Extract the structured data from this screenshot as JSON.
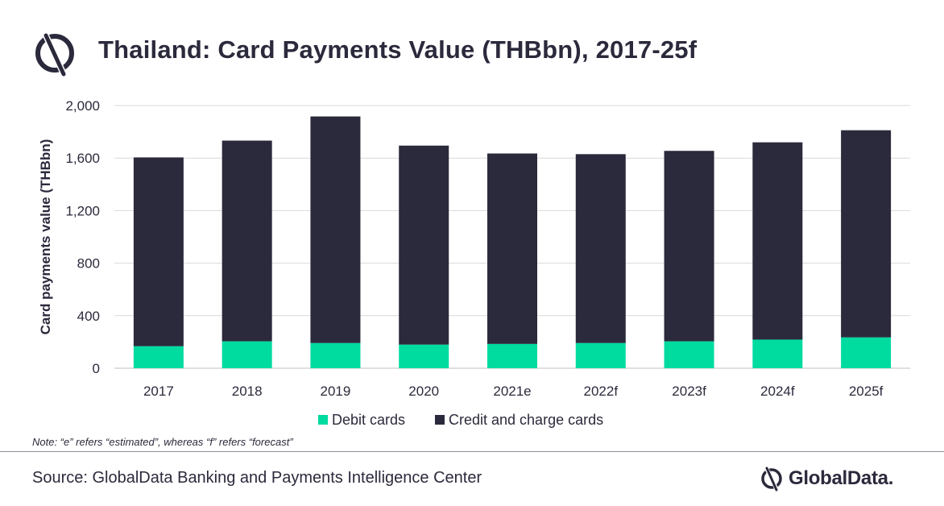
{
  "header": {
    "title": "Thailand: Card Payments Value (THBbn), 2017-25f",
    "logo_icon": "globaldata-icon"
  },
  "colors": {
    "debit": "#00dba0",
    "credit": "#2b2a3c",
    "grid": "#d9d9d9",
    "text": "#2b2a3c"
  },
  "chart_data": {
    "type": "bar",
    "stacked": true,
    "categories": [
      "2017",
      "2018",
      "2019",
      "2020",
      "2021e",
      "2022f",
      "2023f",
      "2024f",
      "2025f"
    ],
    "series": [
      {
        "name": "Debit cards",
        "values": [
          168,
          205,
          192,
          180,
          185,
          192,
          205,
          218,
          235
        ]
      },
      {
        "name": "Credit and charge cards",
        "values": [
          1437,
          1528,
          1725,
          1515,
          1450,
          1438,
          1450,
          1502,
          1577
        ]
      }
    ],
    "title": "Thailand: Card Payments Value (THBbn), 2017-25f",
    "xlabel": "",
    "ylabel": "Card payments value (THBbn)",
    "ylim": [
      0,
      2000
    ],
    "yticks": [
      0,
      400,
      800,
      1200,
      1600,
      2000
    ],
    "ytick_labels": [
      "0",
      "400",
      "800",
      "1,200",
      "1,600",
      "2,000"
    ],
    "grid": true,
    "legend_position": "bottom"
  },
  "note": "Note: “e” refers “estimated”, whereas “f” refers “forecast”",
  "footer": {
    "source": "Source: GlobalData Banking and Payments Intelligence Center",
    "brand": "GlobalData."
  }
}
